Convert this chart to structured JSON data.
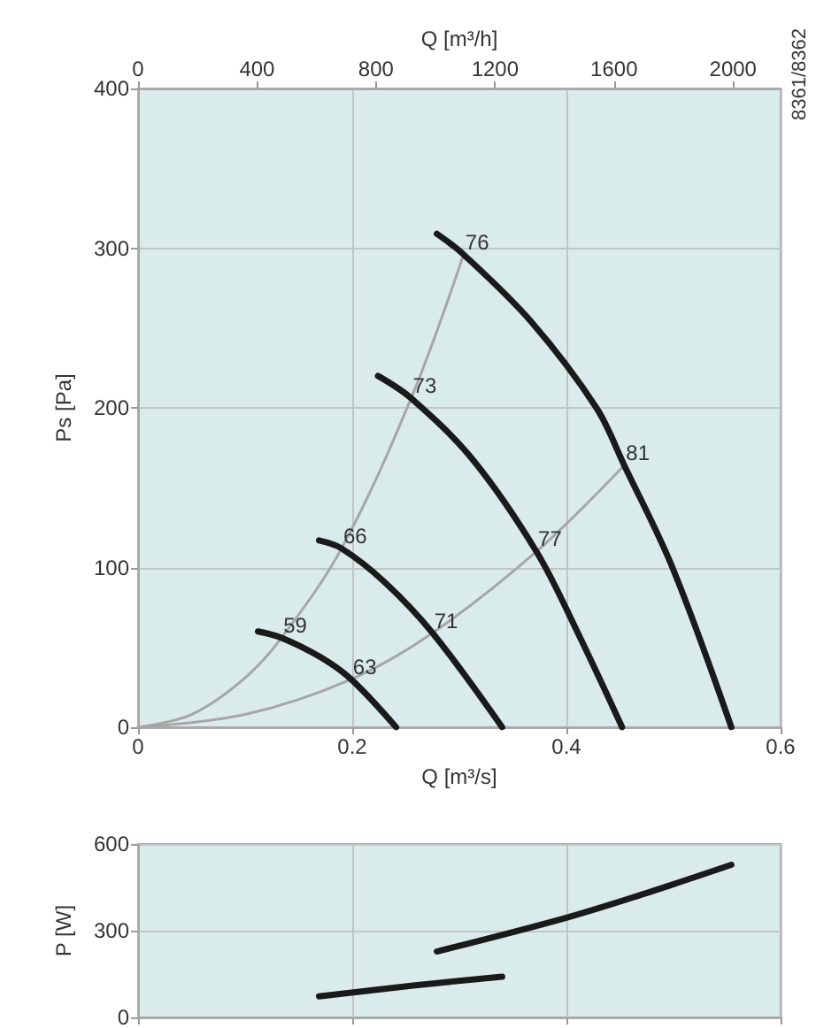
{
  "chart_data": [
    {
      "type": "line",
      "xlabel": "Q [m³/s]",
      "ylabel": "Ps [Pa]",
      "x2label": "Q [m³/h]",
      "xlim": [
        0,
        0.6
      ],
      "xticks": [
        0,
        0.2,
        0.4,
        0.6
      ],
      "ylim": [
        0,
        400
      ],
      "yticks": [
        0,
        100,
        200,
        300,
        400
      ],
      "x2lim": [
        0,
        2160
      ],
      "x2ticks": [
        0,
        400,
        800,
        1200,
        1600,
        2000
      ],
      "grid": true,
      "marker": "none",
      "line_style": "solid",
      "series": [
        {
          "color": "#1a1a1a",
          "x": [
            0.112,
            0.134,
            0.17,
            0.199,
            0.241
          ],
          "values": [
            60,
            56,
            44,
            30,
            0
          ]
        },
        {
          "color": "#1a1a1a",
          "x": [
            0.169,
            0.19,
            0.23,
            0.275,
            0.34
          ],
          "values": [
            117,
            112,
            91,
            59,
            0
          ]
        },
        {
          "color": "#1a1a1a",
          "x": [
            0.224,
            0.255,
            0.312,
            0.372,
            0.41,
            0.452
          ],
          "values": [
            220,
            206,
            168,
            110,
            60,
            0
          ]
        },
        {
          "color": "#1a1a1a",
          "x": [
            0.279,
            0.304,
            0.367,
            0.428,
            0.454,
            0.499,
            0.554
          ],
          "values": [
            309,
            296,
            254,
            200,
            164,
            100,
            0
          ]
        },
        {
          "color": "#a6a6a6",
          "x": [
            0,
            0.05,
            0.1,
            0.134,
            0.19,
            0.255,
            0.304
          ],
          "values": [
            0,
            8,
            31,
            56,
            112,
            206,
            296
          ]
        },
        {
          "color": "#a6a6a6",
          "x": [
            0,
            0.1,
            0.199,
            0.275,
            0.372,
            0.454
          ],
          "values": [
            0,
            8,
            30,
            59,
            110,
            164
          ]
        }
      ],
      "annotations": [
        {
          "text": "59",
          "x": 0.134,
          "y": 56
        },
        {
          "text": "63",
          "x": 0.199,
          "y": 30
        },
        {
          "text": "66",
          "x": 0.19,
          "y": 112
        },
        {
          "text": "71",
          "x": 0.275,
          "y": 59
        },
        {
          "text": "73",
          "x": 0.255,
          "y": 206
        },
        {
          "text": "77",
          "x": 0.372,
          "y": 110
        },
        {
          "text": "76",
          "x": 0.304,
          "y": 296
        },
        {
          "text": "81",
          "x": 0.454,
          "y": 164
        },
        "8361/8362"
      ]
    },
    {
      "type": "line",
      "ylabel": "P [W]",
      "xlim": [
        0,
        0.6
      ],
      "xticks": [
        0,
        0.2,
        0.4,
        0.6
      ],
      "ylim": [
        0,
        600
      ],
      "yticks": [
        0,
        300,
        600
      ],
      "tick_labels": "y",
      "grid": true,
      "marker": "none",
      "line_style": "solid",
      "series": [
        {
          "color": "#1a1a1a",
          "x": [
            0.169,
            0.257,
            0.34
          ],
          "values": [
            73,
            110,
            141
          ]
        },
        {
          "color": "#1a1a1a",
          "x": [
            0.279,
            0.4,
            0.477,
            0.554
          ],
          "values": [
            228,
            345,
            433,
            528
          ]
        }
      ]
    }
  ]
}
